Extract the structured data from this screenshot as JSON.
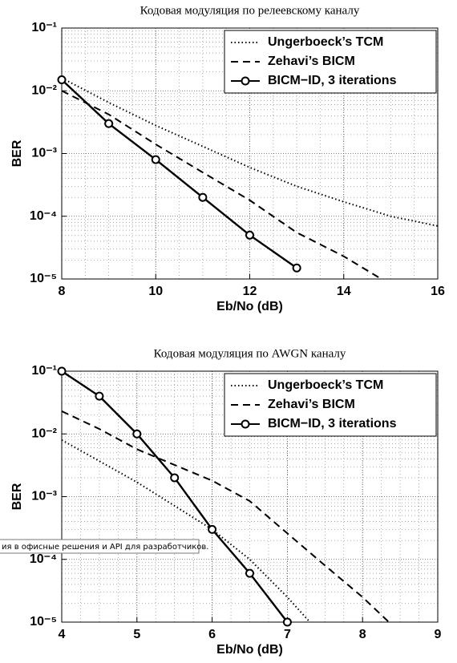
{
  "chart_data": [
    {
      "type": "line",
      "title": "Кодовая модуляция по релеевскому каналу",
      "xlabel": "Eb/No (dB)",
      "ylabel": "BER",
      "log_y": true,
      "grid": true,
      "minor_grid": true,
      "legend": "upper right",
      "xlim": [
        8,
        16
      ],
      "xticks": [
        8,
        10,
        12,
        14,
        16
      ],
      "ylim": [
        1e-05,
        0.1
      ],
      "yticks": [
        {
          "value": 0.1,
          "label": "10⁻¹"
        },
        {
          "value": 0.01,
          "label": "10⁻²"
        },
        {
          "value": 0.001,
          "label": "10⁻³"
        },
        {
          "value": 0.0001,
          "label": "10⁻⁴"
        },
        {
          "value": 1e-05,
          "label": "10⁻⁵"
        }
      ],
      "series": [
        {
          "name": "Ungerboeck’s TCM",
          "color": "#000000",
          "dash": "dotted",
          "marker": null,
          "x": [
            8,
            9,
            10,
            11,
            12,
            13,
            14,
            15,
            16
          ],
          "values": [
            0.016,
            0.0065,
            0.0028,
            0.0013,
            0.0006,
            0.0003,
            0.00017,
            0.0001,
            7e-05
          ]
        },
        {
          "name": "Zehavi’s BICM",
          "color": "#000000",
          "dash": "dashed",
          "marker": null,
          "x": [
            8,
            9,
            10,
            11,
            12,
            13,
            14,
            14.8
          ],
          "values": [
            0.01,
            0.0042,
            0.0014,
            0.0005,
            0.00018,
            5.5e-05,
            2.3e-05,
            1e-05
          ]
        },
        {
          "name": "BICM−ID, 3 iterations",
          "color": "#000000",
          "dash": "solid",
          "marker": "circle",
          "x": [
            8,
            9,
            10,
            11,
            12,
            13
          ],
          "values": [
            0.015,
            0.003,
            0.0008,
            0.0002,
            5e-05,
            1.5e-05
          ]
        }
      ]
    },
    {
      "type": "line",
      "title": "Кодовая модуляция по AWGN каналу",
      "xlabel": "Eb/No (dB)",
      "ylabel": "BER",
      "log_y": true,
      "grid": true,
      "minor_grid": true,
      "legend": "upper right",
      "xlim": [
        4,
        9
      ],
      "xticks": [
        4,
        5,
        6,
        7,
        8,
        9
      ],
      "ylim": [
        1e-05,
        0.1
      ],
      "yticks": [
        {
          "value": 0.1,
          "label": "10⁻¹"
        },
        {
          "value": 0.01,
          "label": "10⁻²"
        },
        {
          "value": 0.001,
          "label": "10⁻³"
        },
        {
          "value": 0.0001,
          "label": "10⁻⁴"
        },
        {
          "value": 1e-05,
          "label": "10⁻⁵"
        }
      ],
      "series": [
        {
          "name": "Ungerboeck’s TCM",
          "color": "#000000",
          "dash": "dotted",
          "marker": null,
          "x": [
            4,
            5,
            6,
            6.5,
            7,
            7.3
          ],
          "values": [
            0.008,
            0.0017,
            0.0003,
            0.0001,
            2.5e-05,
            1e-05
          ]
        },
        {
          "name": "Zehavi’s BICM",
          "color": "#000000",
          "dash": "dashed",
          "marker": null,
          "x": [
            4,
            4.5,
            5,
            5.5,
            6,
            6.5,
            7,
            7.5,
            8,
            8.35
          ],
          "values": [
            0.023,
            0.012,
            0.0057,
            0.0032,
            0.0018,
            0.00085,
            0.00026,
            8e-05,
            2.5e-05,
            1e-05
          ]
        },
        {
          "name": "BICM−ID, 3 iterations",
          "color": "#000000",
          "dash": "solid",
          "marker": "circle",
          "x": [
            4,
            4.5,
            5,
            5.5,
            6,
            6.5,
            7
          ],
          "values": [
            0.1,
            0.04,
            0.01,
            0.002,
            0.0003,
            6e-05,
            1e-05
          ]
        }
      ]
    }
  ],
  "tooltip": "ия в офисные решения и API для разработчиков."
}
